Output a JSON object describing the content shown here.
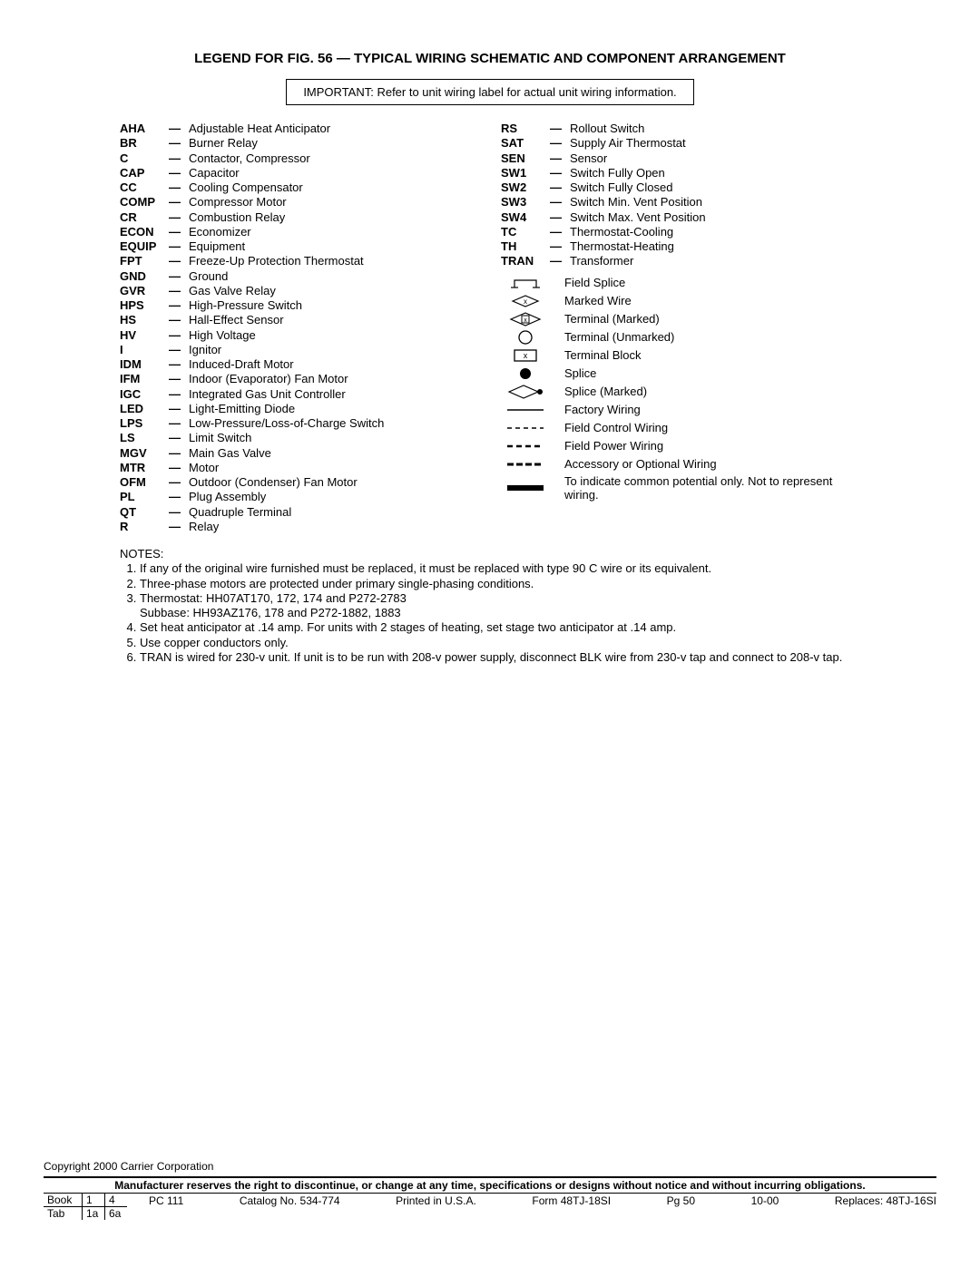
{
  "title": "LEGEND FOR FIG. 56 — TYPICAL WIRING SCHEMATIC AND COMPONENT ARRANGEMENT",
  "important": "IMPORTANT: Refer to unit wiring label for actual unit wiring information.",
  "abbrs_left": [
    {
      "code": "AHA",
      "desc": "Adjustable Heat Anticipator"
    },
    {
      "code": "BR",
      "desc": "Burner Relay"
    },
    {
      "code": "C",
      "desc": "Contactor, Compressor"
    },
    {
      "code": "CAP",
      "desc": "Capacitor"
    },
    {
      "code": "CC",
      "desc": "Cooling Compensator"
    },
    {
      "code": "COMP",
      "desc": "Compressor Motor"
    },
    {
      "code": "CR",
      "desc": "Combustion Relay"
    },
    {
      "code": "ECON",
      "desc": "Economizer"
    },
    {
      "code": "EQUIP",
      "desc": "Equipment"
    },
    {
      "code": "FPT",
      "desc": "Freeze-Up Protection Thermostat"
    },
    {
      "code": "GND",
      "desc": "Ground"
    },
    {
      "code": "GVR",
      "desc": "Gas Valve Relay"
    },
    {
      "code": "HPS",
      "desc": "High-Pressure Switch"
    },
    {
      "code": "HS",
      "desc": "Hall-Effect Sensor"
    },
    {
      "code": "HV",
      "desc": "High Voltage"
    },
    {
      "code": "I",
      "desc": "Ignitor"
    },
    {
      "code": "IDM",
      "desc": "Induced-Draft Motor"
    },
    {
      "code": "IFM",
      "desc": "Indoor (Evaporator) Fan Motor"
    },
    {
      "code": "IGC",
      "desc": "Integrated Gas Unit Controller"
    },
    {
      "code": "LED",
      "desc": "Light-Emitting Diode"
    },
    {
      "code": "LPS",
      "desc": "Low-Pressure/Loss-of-Charge Switch"
    },
    {
      "code": "LS",
      "desc": "Limit Switch"
    },
    {
      "code": "MGV",
      "desc": "Main Gas Valve"
    },
    {
      "code": "MTR",
      "desc": "Motor"
    },
    {
      "code": "OFM",
      "desc": "Outdoor (Condenser) Fan Motor"
    },
    {
      "code": "PL",
      "desc": "Plug Assembly"
    },
    {
      "code": "QT",
      "desc": "Quadruple Terminal"
    },
    {
      "code": "R",
      "desc": "Relay"
    }
  ],
  "abbrs_right": [
    {
      "code": "RS",
      "desc": "Rollout Switch"
    },
    {
      "code": "SAT",
      "desc": "Supply Air Thermostat"
    },
    {
      "code": "SEN",
      "desc": "Sensor"
    },
    {
      "code": "SW1",
      "desc": "Switch Fully Open"
    },
    {
      "code": "SW2",
      "desc": "Switch Fully Closed"
    },
    {
      "code": "SW3",
      "desc": "Switch Min. Vent Position"
    },
    {
      "code": "SW4",
      "desc": "Switch Max. Vent Position"
    },
    {
      "code": "TC",
      "desc": "Thermostat-Cooling"
    },
    {
      "code": "TH",
      "desc": "Thermostat-Heating"
    },
    {
      "code": "TRAN",
      "desc": "Transformer"
    }
  ],
  "symbols": [
    {
      "icon": "field-splice",
      "label": "Field Splice"
    },
    {
      "icon": "marked-wire",
      "label": "Marked Wire"
    },
    {
      "icon": "terminal-marked",
      "label": "Terminal (Marked)"
    },
    {
      "icon": "terminal-unmarked",
      "label": "Terminal (Unmarked)"
    },
    {
      "icon": "terminal-block",
      "label": "Terminal Block"
    },
    {
      "icon": "splice",
      "label": "Splice"
    },
    {
      "icon": "splice-marked",
      "label": "Splice (Marked)"
    },
    {
      "icon": "factory-wiring",
      "label": "Factory Wiring"
    },
    {
      "icon": "field-control-wiring",
      "label": "Field Control Wiring"
    },
    {
      "icon": "field-power-wiring",
      "label": "Field Power Wiring"
    },
    {
      "icon": "accessory-wiring",
      "label": "Accessory or Optional Wiring"
    },
    {
      "icon": "common-potential",
      "label": "To indicate common potential only. Not to represent wiring."
    }
  ],
  "notes_heading": "NOTES:",
  "notes": [
    "If any of the original wire furnished must be replaced, it must be replaced with type 90 C wire or its equivalent.",
    "Three-phase motors are protected under primary single-phasing conditions.",
    "Thermostat: HH07AT170, 172, 174 and P272-2783\nSubbase: HH93AZ176, 178 and P272-1882, 1883",
    "Set heat anticipator at .14 amp. For units with 2 stages of heating, set stage two anticipator at .14 amp.",
    "Use copper conductors only.",
    "TRAN is wired for 230-v unit. If unit is to be run with 208-v power supply, disconnect BLK wire from 230-v tap and connect to 208-v tap."
  ],
  "copyright": "Copyright 2000 Carrier Corporation",
  "mfr_line": "Manufacturer reserves the right to discontinue, or change at any time, specifications or designs without notice and without incurring obligations.",
  "book_tab": {
    "book_label": "Book",
    "book_v1": "1",
    "book_v2": "4",
    "tab_label": "Tab",
    "tab_v1": "1a",
    "tab_v2": "6a"
  },
  "footer_info": {
    "pc": "PC 111",
    "catalog": "Catalog No. 534-774",
    "printed": "Printed in U.S.A.",
    "form": "Form 48TJ-18SI",
    "pg": "Pg 50",
    "date": "10-00",
    "replaces": "Replaces: 48TJ-16SI"
  }
}
